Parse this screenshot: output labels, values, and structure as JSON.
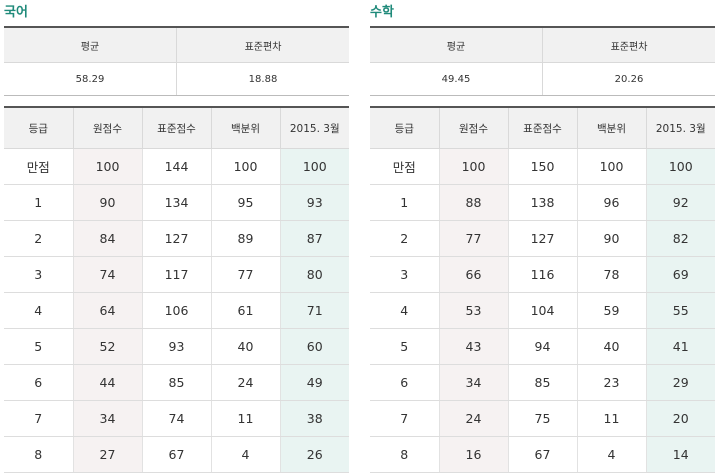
{
  "summary_headers": [
    "평균",
    "표준편차"
  ],
  "grade_headers": [
    "등급",
    "원점수",
    "표준점수",
    "백분위",
    "2015. 3월"
  ],
  "subjects": [
    {
      "title": "국어",
      "average": "58.29",
      "std_dev": "18.88",
      "rows": [
        [
          "만점",
          "100",
          "144",
          "100",
          "100"
        ],
        [
          "1",
          "90",
          "134",
          "95",
          "93"
        ],
        [
          "2",
          "84",
          "127",
          "89",
          "87"
        ],
        [
          "3",
          "74",
          "117",
          "77",
          "80"
        ],
        [
          "4",
          "64",
          "106",
          "61",
          "71"
        ],
        [
          "5",
          "52",
          "93",
          "40",
          "60"
        ],
        [
          "6",
          "44",
          "85",
          "24",
          "49"
        ],
        [
          "7",
          "34",
          "74",
          "11",
          "38"
        ],
        [
          "8",
          "27",
          "67",
          "4",
          "26"
        ]
      ]
    },
    {
      "title": "수학",
      "average": "49.45",
      "std_dev": "20.26",
      "rows": [
        [
          "만점",
          "100",
          "150",
          "100",
          "100"
        ],
        [
          "1",
          "88",
          "138",
          "96",
          "92"
        ],
        [
          "2",
          "77",
          "127",
          "90",
          "82"
        ],
        [
          "3",
          "66",
          "116",
          "78",
          "69"
        ],
        [
          "4",
          "53",
          "104",
          "59",
          "55"
        ],
        [
          "5",
          "43",
          "94",
          "40",
          "41"
        ],
        [
          "6",
          "34",
          "85",
          "23",
          "29"
        ],
        [
          "7",
          "24",
          "75",
          "11",
          "20"
        ],
        [
          "8",
          "16",
          "67",
          "4",
          "14"
        ]
      ]
    }
  ]
}
